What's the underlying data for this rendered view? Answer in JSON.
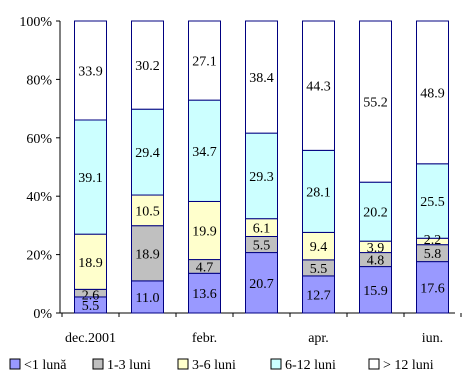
{
  "chart_data": {
    "type": "bar",
    "stacked": true,
    "percent_stacked": true,
    "categories": [
      "dec.2001",
      "",
      "febr.",
      "",
      "apr.",
      "",
      "iun."
    ],
    "x_tick_labels": [
      "dec.2001",
      "febr.",
      "apr.",
      "iun."
    ],
    "y_tick_labels": [
      "0%",
      "20%",
      "40%",
      "60%",
      "80%",
      "100%"
    ],
    "ylim": [
      0,
      100
    ],
    "grid": false,
    "legend_position": "bottom",
    "series": [
      {
        "name": "<1 lună",
        "color": "#9999ff",
        "values": [
          5.5,
          11.0,
          13.6,
          20.7,
          12.7,
          15.9,
          17.6
        ],
        "labels": [
          "5.5",
          "11.0",
          "13.6",
          "20.7",
          "12.7",
          "15.9",
          "17.6"
        ]
      },
      {
        "name": "1-3 luni",
        "color": "#c0c0c0",
        "values": [
          2.6,
          18.9,
          4.7,
          5.5,
          5.5,
          4.8,
          5.8
        ],
        "labels": [
          "2.6",
          "18.9",
          "4.7",
          "5.5",
          "5.5",
          "4.8",
          "5.8"
        ]
      },
      {
        "name": "3-6 luni",
        "color": "#ffffcc",
        "values": [
          18.9,
          10.5,
          19.9,
          6.1,
          9.4,
          3.9,
          2.2
        ],
        "labels": [
          "18.9",
          "10.5",
          "19.9",
          "6.1",
          "9.4",
          "3.9",
          "2.2"
        ]
      },
      {
        "name": "6-12 luni",
        "color": "#ccffff",
        "values": [
          39.1,
          29.4,
          34.7,
          29.3,
          28.1,
          20.2,
          25.5
        ],
        "labels": [
          "39.1",
          "29.4",
          "34.7",
          "29.3",
          "28.1",
          "20.2",
          "25.5"
        ]
      },
      {
        "name": "> 12 luni",
        "color": "#ffffff",
        "values": [
          33.9,
          30.2,
          27.1,
          38.4,
          44.3,
          55.2,
          48.9
        ],
        "labels": [
          "33.9",
          "30.2",
          "27.1",
          "38.4",
          "44.3",
          "55.2",
          "48.9"
        ]
      }
    ],
    "bar_border_color": "#000080"
  }
}
